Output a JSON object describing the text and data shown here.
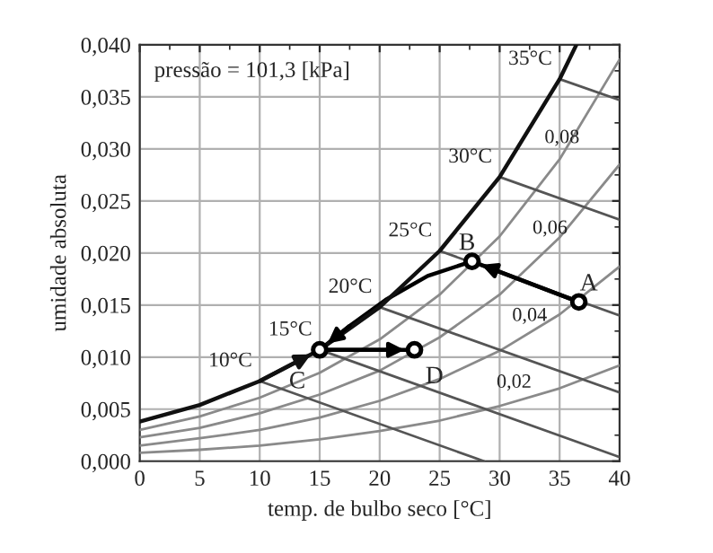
{
  "chart_data": {
    "type": "line",
    "xlabel": "temp. de bulbo seco [°C]",
    "ylabel": "umidade absoluta",
    "xlim": [
      0,
      40
    ],
    "xticks": [
      0,
      5,
      10,
      15,
      20,
      25,
      30,
      35,
      40
    ],
    "ylim": [
      0,
      0.04
    ],
    "yticks": [
      {
        "value": 0,
        "label": "0,000"
      },
      {
        "value": 0.005,
        "label": "0,005"
      },
      {
        "value": 0.01,
        "label": "0,010"
      },
      {
        "value": 0.015,
        "label": "0,015"
      },
      {
        "value": 0.02,
        "label": "0,020"
      },
      {
        "value": 0.025,
        "label": "0,025"
      },
      {
        "value": 0.03,
        "label": "0,030"
      },
      {
        "value": 0.035,
        "label": "0,035"
      },
      {
        "value": 0.04,
        "label": "0,040"
      }
    ],
    "grid": true,
    "legend": false,
    "series": [
      {
        "color": "#111111",
        "x": [
          0,
          5,
          10,
          15,
          20,
          25,
          30,
          35,
          36.4
        ],
        "values": [
          0.0038,
          0.0054,
          0.0077,
          0.0107,
          0.0148,
          0.0202,
          0.0273,
          0.0367,
          0.04
        ]
      },
      {
        "type": "line",
        "color": "#8a8a8a",
        "x": [
          0,
          5,
          10,
          15,
          20,
          25,
          30,
          35,
          40
        ],
        "values": [
          0.003,
          0.0043,
          0.0061,
          0.0085,
          0.0117,
          0.016,
          0.0216,
          0.029,
          0.0386
        ]
      },
      {
        "type": "line",
        "color": "#8a8a8a",
        "x": [
          0,
          5,
          10,
          15,
          20,
          25,
          30,
          35,
          40
        ],
        "values": [
          0.0023,
          0.0032,
          0.0046,
          0.0064,
          0.0087,
          0.0119,
          0.016,
          0.0215,
          0.0285
        ]
      },
      {
        "type": "line",
        "color": "#8a8a8a",
        "x": [
          0,
          5,
          10,
          15,
          20,
          25,
          30,
          35,
          40
        ],
        "values": [
          0.0015,
          0.0022,
          0.003,
          0.0042,
          0.0058,
          0.0079,
          0.0106,
          0.0141,
          0.0187
        ]
      },
      {
        "type": "line",
        "color": "#8a8a8a",
        "x": [
          0,
          5,
          10,
          15,
          20,
          25,
          30,
          35,
          40
        ],
        "values": [
          0.0008,
          0.0011,
          0.0015,
          0.0021,
          0.0029,
          0.0039,
          0.0053,
          0.007,
          0.0092
        ]
      },
      {
        "type": "line",
        "color": "#555555",
        "x": [
          35,
          40
        ],
        "values": [
          0.0367,
          0.0347
        ]
      },
      {
        "type": "line",
        "color": "#555555",
        "x": [
          30,
          40
        ],
        "values": [
          0.0273,
          0.0232
        ]
      },
      {
        "type": "line",
        "color": "#555555",
        "x": [
          25,
          40
        ],
        "values": [
          0.0202,
          0.014
        ]
      },
      {
        "type": "line",
        "color": "#555555",
        "x": [
          20,
          40
        ],
        "values": [
          0.0148,
          0.0066
        ]
      },
      {
        "type": "line",
        "color": "#555555",
        "x": [
          15,
          40
        ],
        "values": [
          0.0107,
          0.0004
        ]
      },
      {
        "type": "line",
        "color": "#555555",
        "x": [
          10,
          28.7
        ],
        "values": [
          0.0077,
          0
        ]
      },
      {
        "type": "line",
        "color": "#000000",
        "x": [
          36.6,
          27.7,
          24,
          20.5,
          17.5,
          15,
          22.9
        ],
        "values": [
          0.0153,
          0.0192,
          0.0178,
          0.0155,
          0.013,
          0.0107,
          0.0107
        ]
      },
      {
        "type": "scatter",
        "color": "#000000",
        "marker": "circle",
        "x": [
          36.6,
          27.7,
          15,
          22.9
        ],
        "values": [
          0.0153,
          0.0192,
          0.0107,
          0.0107
        ],
        "value_labels": [
          "A",
          "B",
          "C",
          "D"
        ]
      }
    ],
    "annotations": [
      "pressão = 101,3 [kPa]",
      {
        "text": "10°C",
        "x": 10,
        "y": 0.0077
      },
      {
        "text": "15°C",
        "x": 15,
        "y": 0.0107
      },
      {
        "text": "20°C",
        "x": 20,
        "y": 0.0148
      },
      {
        "text": "25°C",
        "x": 25,
        "y": 0.0202
      },
      {
        "text": "30°C",
        "x": 30,
        "y": 0.0273
      },
      {
        "text": "35°C",
        "x": 35,
        "y": 0.0367
      },
      {
        "text": "0,02",
        "x": 31.2,
        "y": 0.0057
      },
      {
        "text": "0,04",
        "x": 32.5,
        "y": 0.0121
      },
      {
        "text": "0,06",
        "x": 34.2,
        "y": 0.0205
      },
      {
        "text": "0,08",
        "x": 35.2,
        "y": 0.0292
      }
    ]
  }
}
